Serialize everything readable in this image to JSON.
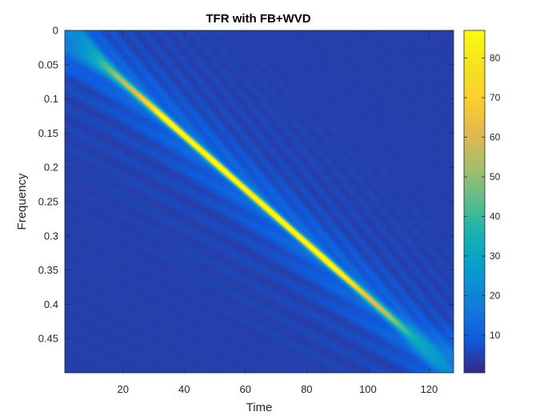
{
  "chart_data": {
    "type": "heatmap",
    "title": "TFR with FB+WVD",
    "xlabel": "Time",
    "ylabel": "Frequency",
    "xlim": [
      1,
      128
    ],
    "ylim": [
      0,
      0.5
    ],
    "y_direction": "reversed",
    "x_ticks": [
      20,
      40,
      60,
      80,
      100,
      120
    ],
    "y_ticks": [
      0,
      0.05,
      0.1,
      0.15,
      0.2,
      0.25,
      0.3,
      0.35,
      0.4,
      0.45
    ],
    "y_tick_labels": [
      "0",
      "0.05",
      "0.1",
      "0.15",
      "0.2",
      "0.25",
      "0.3",
      "0.35",
      "0.4",
      "0.45"
    ],
    "colorbar": {
      "colormap": "parula",
      "range": [
        0.5,
        87
      ],
      "ticks": [
        10,
        20,
        30,
        40,
        50,
        60,
        70,
        80
      ]
    },
    "feature": {
      "kind": "linear chirp ridge",
      "start": {
        "time": 1,
        "frequency": 0.0
      },
      "end": {
        "time": 128,
        "frequency": 0.5
      },
      "peak_value": 87,
      "peak_time_range": [
        35,
        88
      ]
    },
    "background_level": 4
  }
}
